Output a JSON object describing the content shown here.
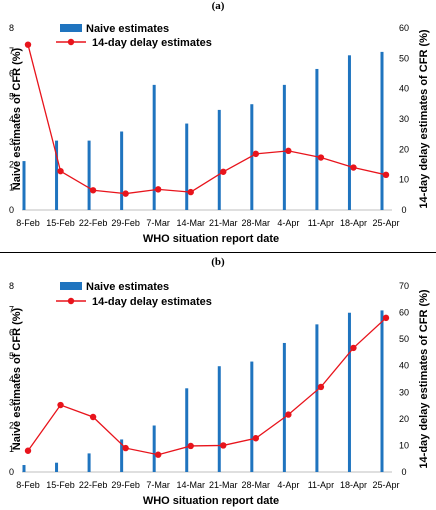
{
  "chart_data": [
    {
      "type": "bar+line",
      "panel_label": "(a)",
      "categories": [
        "8-Feb",
        "15-Feb",
        "22-Feb",
        "29-Feb",
        "7-Mar",
        "14-Mar",
        "21-Mar",
        "28-Mar",
        "4-Apr",
        "11-Apr",
        "18-Apr",
        "25-Apr"
      ],
      "series": [
        {
          "name": "Naive estimates",
          "kind": "bar",
          "axis": "left",
          "color": "#1f74bf",
          "values": [
            2.15,
            3.05,
            3.05,
            3.45,
            5.5,
            3.8,
            4.4,
            4.65,
            5.5,
            6.2,
            6.8,
            6.95
          ]
        },
        {
          "name": "14-day delay estimates",
          "kind": "line",
          "axis": "right",
          "color": "#e8141c",
          "values": [
            54.5,
            12.8,
            6.5,
            5.4,
            6.8,
            5.9,
            12.6,
            18.5,
            19.5,
            17.3,
            14.0,
            11.6
          ]
        }
      ],
      "xlabel": "WHO situation report date",
      "ylabel_left": "Naive estimates of CFR (%)",
      "ylabel_right": "14-day delay estimates of CFR (%)",
      "ylim_left": [
        0,
        8
      ],
      "yticks_left": [
        "0",
        "1",
        "2",
        "3",
        "4",
        "5",
        "6",
        "7",
        "8"
      ],
      "ylim_right": [
        0,
        60
      ],
      "yticks_right": [
        "0",
        "10",
        "20",
        "30",
        "40",
        "50",
        "60"
      ],
      "legend_position": "top-left"
    },
    {
      "type": "bar+line",
      "panel_label": "(b)",
      "categories": [
        "8-Feb",
        "15-Feb",
        "22-Feb",
        "29-Feb",
        "7-Mar",
        "14-Mar",
        "21-Mar",
        "28-Mar",
        "4-Apr",
        "11-Apr",
        "18-Apr",
        "25-Apr"
      ],
      "series": [
        {
          "name": "Naive estimates",
          "kind": "bar",
          "axis": "left",
          "color": "#1f74bf",
          "values": [
            0.3,
            0.4,
            0.8,
            1.4,
            2.0,
            3.6,
            4.55,
            4.75,
            5.55,
            6.35,
            6.85,
            6.95
          ]
        },
        {
          "name": "14-day delay estimates",
          "kind": "line",
          "axis": "right",
          "color": "#e8141c",
          "values": [
            8.0,
            25.2,
            20.7,
            9.0,
            6.5,
            9.8,
            10.0,
            12.7,
            21.6,
            32.0,
            46.7,
            58.0
          ]
        }
      ],
      "xlabel": "WHO situation report date",
      "ylabel_left": "Naive estimates of CFR (%)",
      "ylabel_right": "14-day delay estimates of CFR (%)",
      "ylim_left": [
        0,
        8
      ],
      "yticks_left": [
        "0",
        "1",
        "2",
        "3",
        "4",
        "5",
        "6",
        "7",
        "8"
      ],
      "ylim_right": [
        0,
        70
      ],
      "yticks_right": [
        "0",
        "10",
        "20",
        "30",
        "40",
        "50",
        "60",
        "70"
      ],
      "legend_position": "top-left"
    }
  ]
}
